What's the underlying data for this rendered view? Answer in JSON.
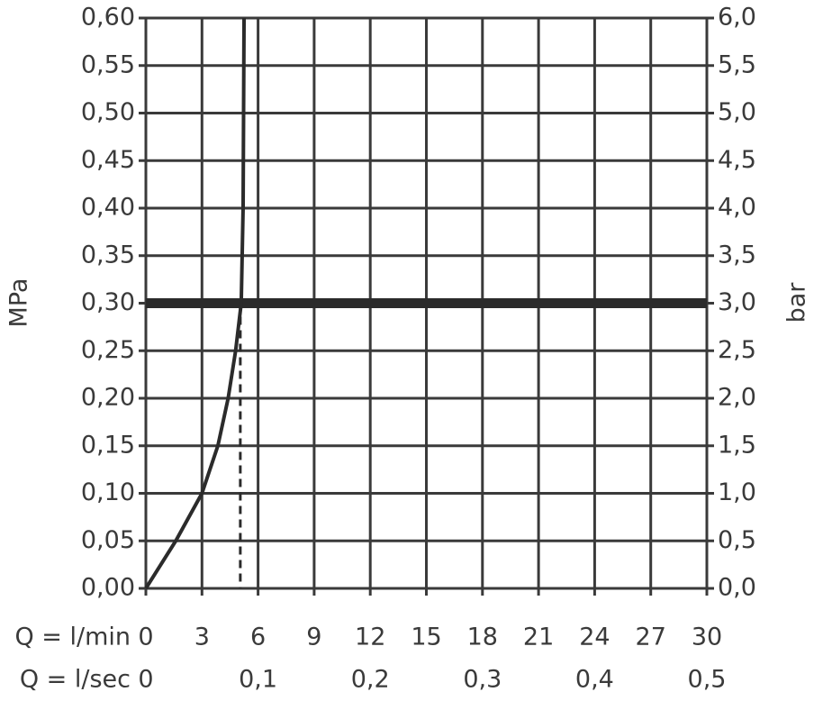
{
  "chart_data": {
    "type": "line",
    "xlabel": "Q = l/min",
    "x2label": "Q = l/sec",
    "ylabel": "MPa",
    "y2label": "bar",
    "xlim": [
      0,
      30
    ],
    "xticks": [
      0,
      3,
      6,
      9,
      12,
      15,
      18,
      21,
      24,
      27,
      30
    ],
    "x2lim": [
      0,
      0.5
    ],
    "x2ticks": [
      0,
      {
        "value": 0.1,
        "label": "0,1"
      },
      {
        "value": 0.2,
        "label": "0,2"
      },
      {
        "value": 0.3,
        "label": "0,3"
      },
      {
        "value": 0.4,
        "label": "0,4"
      },
      {
        "value": 0.5,
        "label": "0,5"
      }
    ],
    "ylim": [
      0,
      0.6
    ],
    "yticks": [
      {
        "value": 0,
        "label": "0,00"
      },
      {
        "value": 0.05,
        "label": "0,05"
      },
      {
        "value": 0.1,
        "label": "0,10"
      },
      {
        "value": 0.15,
        "label": "0,15"
      },
      {
        "value": 0.2,
        "label": "0,20"
      },
      {
        "value": 0.25,
        "label": "0,25"
      },
      {
        "value": 0.3,
        "label": "0,30"
      },
      {
        "value": 0.35,
        "label": "0,35"
      },
      {
        "value": 0.4,
        "label": "0,40"
      },
      {
        "value": 0.45,
        "label": "0,45"
      },
      {
        "value": 0.5,
        "label": "0,50"
      },
      {
        "value": 0.55,
        "label": "0,55"
      },
      {
        "value": 0.6,
        "label": "0,60"
      }
    ],
    "y2lim": [
      0,
      6
    ],
    "y2ticks": [
      {
        "value": 0,
        "label": "0,0"
      },
      {
        "value": 0.5,
        "label": "0,5"
      },
      {
        "value": 1,
        "label": "1,0"
      },
      {
        "value": 1.5,
        "label": "1,5"
      },
      {
        "value": 2,
        "label": "2,0"
      },
      {
        "value": 2.5,
        "label": "2,5"
      },
      {
        "value": 3,
        "label": "3,0"
      },
      {
        "value": 3.5,
        "label": "3,5"
      },
      {
        "value": 4,
        "label": "4,0"
      },
      {
        "value": 4.5,
        "label": "4,5"
      },
      {
        "value": 5,
        "label": "5,0"
      },
      {
        "value": 5.5,
        "label": "5,5"
      },
      {
        "value": 6,
        "label": "6,0"
      }
    ],
    "grid": true,
    "color": "#2b2b2b",
    "x": [
      0,
      1.6,
      3,
      3.85,
      4.4,
      4.8,
      5.1,
      5.2,
      5.25
    ],
    "values": [
      0,
      0.05,
      0.1,
      0.15,
      0.2,
      0.25,
      0.3,
      0.4,
      0.6
    ],
    "hline": 0.3,
    "vline_x": 5.05
  }
}
